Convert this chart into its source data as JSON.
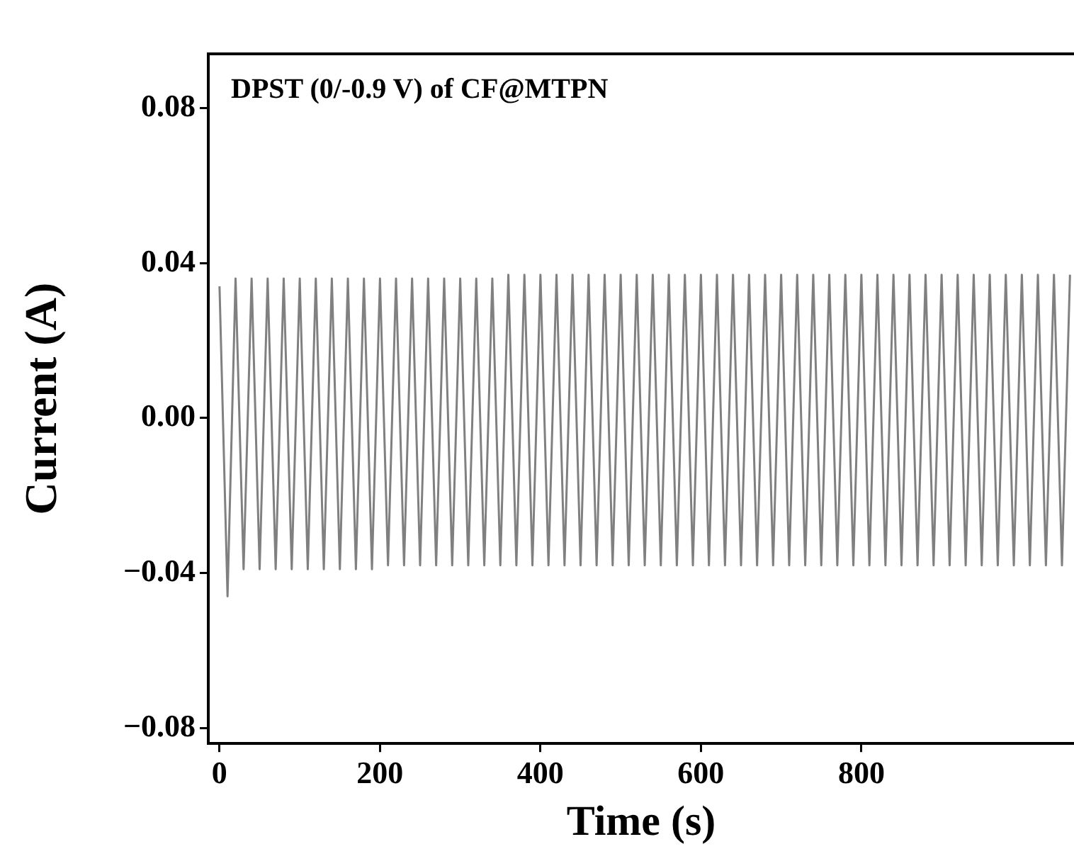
{
  "chart_data": {
    "type": "line",
    "annotations": [
      "DPST (0/-0.9 V) of CF@MTPN"
    ],
    "xlabel": "Time (s)",
    "ylabel": "Current (A)",
    "xlim": [
      -14,
      1065
    ],
    "xticks": [
      0,
      200,
      400,
      600,
      800
    ],
    "ylim": [
      -0.084,
      0.094
    ],
    "yticks": [
      {
        "value": -0.08,
        "label": "−0.08"
      },
      {
        "value": -0.04,
        "label": "−0.04"
      },
      {
        "value": 0,
        "label": "0.00"
      },
      0.04,
      0.08
    ],
    "grid": false,
    "legend": false,
    "marker": "none",
    "line_style": "solid",
    "x": [
      0,
      10,
      20,
      30,
      40,
      50,
      60,
      70,
      80,
      90,
      100,
      110,
      120,
      130,
      140,
      150,
      160,
      170,
      180,
      190,
      200,
      210,
      220,
      230,
      240,
      250,
      260,
      270,
      280,
      290,
      300,
      310,
      320,
      330,
      340,
      350,
      360,
      370,
      380,
      390,
      400,
      410,
      420,
      430,
      440,
      450,
      460,
      470,
      480,
      490,
      500,
      510,
      520,
      530,
      540,
      550,
      560,
      570,
      580,
      590,
      600,
      610,
      620,
      630,
      640,
      650,
      660,
      670,
      680,
      690,
      700,
      710,
      720,
      730,
      740,
      750,
      760,
      770,
      780,
      790,
      800,
      810,
      820,
      830,
      840,
      850,
      860,
      870,
      880,
      890,
      900,
      910,
      920,
      930,
      940,
      950,
      960,
      970,
      980,
      990,
      1000,
      1010,
      1020,
      1030,
      1040,
      1050,
      1060
    ],
    "series": [
      {
        "color": "#808080",
        "values": [
          0.034,
          -0.046,
          0.036,
          -0.039,
          0.036,
          -0.039,
          0.036,
          -0.039,
          0.036,
          -0.039,
          0.036,
          -0.039,
          0.036,
          -0.039,
          0.036,
          -0.039,
          0.036,
          -0.039,
          0.036,
          -0.039,
          0.036,
          -0.038,
          0.036,
          -0.038,
          0.036,
          -0.038,
          0.036,
          -0.038,
          0.036,
          -0.038,
          0.036,
          -0.038,
          0.036,
          -0.038,
          0.036,
          -0.038,
          0.037,
          -0.038,
          0.037,
          -0.038,
          0.037,
          -0.038,
          0.037,
          -0.038,
          0.037,
          -0.038,
          0.037,
          -0.038,
          0.037,
          -0.038,
          0.037,
          -0.038,
          0.037,
          -0.038,
          0.037,
          -0.038,
          0.037,
          -0.038,
          0.037,
          -0.038,
          0.037,
          -0.038,
          0.037,
          -0.038,
          0.037,
          -0.038,
          0.037,
          -0.038,
          0.037,
          -0.038,
          0.037,
          -0.038,
          0.037,
          -0.038,
          0.037,
          -0.038,
          0.037,
          -0.038,
          0.037,
          -0.038,
          0.037,
          -0.038,
          0.037,
          -0.038,
          0.037,
          -0.038,
          0.037,
          -0.038,
          0.037,
          -0.038,
          0.037,
          -0.038,
          0.037,
          -0.038,
          0.037,
          -0.038,
          0.037,
          -0.038,
          0.037,
          -0.038,
          0.037,
          -0.038,
          0.037,
          -0.038,
          0.037,
          -0.038,
          0.037
        ]
      }
    ]
  }
}
